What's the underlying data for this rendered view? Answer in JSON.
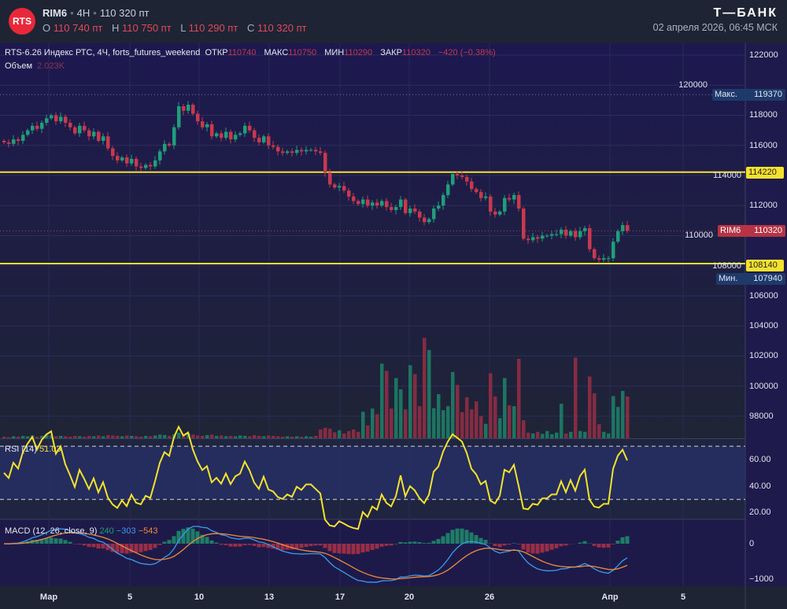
{
  "header": {
    "logo_text": "RTS",
    "symbol": "RIM6",
    "interval": "4H",
    "last": "110 320 пт",
    "ohlc": [
      {
        "k": "O",
        "v": "110 740 пт"
      },
      {
        "k": "H",
        "v": "110 750 пт"
      },
      {
        "k": "L",
        "v": "110 290 пт"
      },
      {
        "k": "C",
        "v": "110 320 пт"
      }
    ],
    "brand": "Т—БАНК",
    "date": "02 апреля 2026, 06:45 МСК"
  },
  "legend": {
    "title": "RTS-6.26 Индекс РТС, 4Ч, forts_futures_weekend",
    "open_label": "ОТКР",
    "open": "110740",
    "high_label": "МАКС",
    "high": "110750",
    "low_label": "МИН",
    "low": "110290",
    "close_label": "ЗАКР",
    "close": "110320",
    "change": "−420 (−0.38%)",
    "volume_label": "Объем",
    "volume": "2.023K"
  },
  "price_axis": {
    "ticks": [
      "122000",
      "120000",
      "118000",
      "116000",
      "114000",
      "112000",
      "110000",
      "108000",
      "106000",
      "104000",
      "102000",
      "100000",
      "98000"
    ],
    "tags": {
      "max_label": "Макс.",
      "max": "119370",
      "level1": "114220",
      "current_label": "RIM6",
      "current": "110320",
      "level2": "108140",
      "min_label": "Мин.",
      "min": "107940"
    }
  },
  "rsi": {
    "label": "RSI (14)",
    "value": "51.03",
    "ticks": [
      "60.00",
      "40.00",
      "20.00"
    ]
  },
  "macd": {
    "label": "MACD (12, 26, close, 9)",
    "hist": "240",
    "macd": "−303",
    "signal": "−543",
    "ticks": [
      "0",
      "−1000"
    ]
  },
  "time_axis": [
    "Мар",
    "5",
    "10",
    "13",
    "17",
    "20",
    "26",
    "Апр",
    "5"
  ],
  "colors": {
    "up": "#1f9e7a",
    "down": "#c8394d",
    "level": "#f5e12e",
    "rsi": "#f5e12e",
    "macd": "#3d9be9",
    "signal": "#f08a3c"
  },
  "chart_data": {
    "type": "candlestick",
    "y_range": [
      96000,
      123000
    ],
    "levels": [
      114220,
      108140
    ],
    "closes": [
      116200,
      116100,
      116400,
      116300,
      116700,
      117000,
      117300,
      117100,
      117500,
      117800,
      118000,
      117600,
      117900,
      117500,
      117200,
      116800,
      117300,
      117000,
      116600,
      116900,
      116300,
      116600,
      115800,
      115300,
      115000,
      115200,
      114800,
      115100,
      114600,
      114500,
      114700,
      114600,
      115000,
      115600,
      116100,
      116000,
      117200,
      118600,
      118300,
      118700,
      118100,
      117600,
      117200,
      117400,
      116600,
      116800,
      116500,
      116900,
      116400,
      116700,
      116800,
      117300,
      117000,
      116500,
      116200,
      116600,
      116000,
      115900,
      115600,
      115500,
      115600,
      115500,
      115700,
      115600,
      115700,
      115700,
      115600,
      115500,
      114200,
      113400,
      113200,
      113300,
      113000,
      112600,
      112300,
      112100,
      112400,
      112000,
      112200,
      112000,
      112300,
      111900,
      111700,
      111900,
      112400,
      111500,
      111800,
      111600,
      111200,
      110900,
      111100,
      111800,
      112000,
      112700,
      113400,
      114100,
      114000,
      113900,
      113600,
      113100,
      112900,
      112500,
      112600,
      111600,
      111400,
      111600,
      112500,
      112400,
      112700,
      111800,
      109800,
      109700,
      109900,
      109800,
      110000,
      110000,
      110100,
      110100,
      110400,
      110000,
      110300,
      109900,
      110300,
      110500,
      109100,
      108500,
      108400,
      108500,
      108500,
      109600,
      110300,
      110700,
      110320
    ],
    "volumes_k": [
      0.4,
      0.3,
      0.5,
      0.4,
      0.6,
      0.5,
      0.7,
      0.4,
      0.6,
      0.8,
      0.7,
      0.5,
      0.6,
      0.5,
      0.4,
      0.6,
      0.5,
      0.4,
      0.6,
      0.5,
      0.7,
      0.5,
      0.8,
      0.7,
      0.6,
      0.5,
      0.7,
      0.6,
      0.5,
      0.4,
      0.6,
      0.5,
      0.7,
      0.9,
      0.8,
      0.6,
      1.0,
      1.4,
      1.0,
      1.2,
      0.9,
      0.7,
      0.6,
      0.8,
      0.9,
      0.6,
      0.7,
      0.5,
      0.6,
      0.5,
      0.7,
      0.6,
      0.5,
      0.8,
      0.6,
      0.5,
      0.7,
      0.6,
      0.5,
      0.4,
      0.5,
      0.4,
      0.5,
      0.4,
      0.5,
      0.4,
      0.6,
      2.2,
      2.6,
      2.4,
      1.5,
      2.0,
      1.2,
      1.8,
      2.2,
      1.6,
      6.6,
      3.2,
      7.4,
      6.0,
      18.6,
      16.8,
      7.4,
      15.0,
      12.2,
      7.2,
      18.2,
      16.0,
      8.0,
      25.0,
      22.0,
      7.5,
      11.0,
      7.0,
      8.0,
      16.5,
      13.3,
      6.5,
      10.2,
      7.2,
      9.2,
      5.5,
      3.6,
      16.2,
      10.4,
      5.0,
      15.0,
      8.2,
      8.0,
      19.8,
      4.5,
      1.4,
      1.2,
      1.6,
      1.1,
      1.8,
      1.0,
      1.4,
      8.6,
      1.2,
      1.6,
      20.1,
      1.8,
      1.6,
      15.4,
      11.2,
      3.5,
      1.6,
      1.2,
      10.5,
      7.8,
      11.8,
      10.4,
      2.0
    ]
  }
}
